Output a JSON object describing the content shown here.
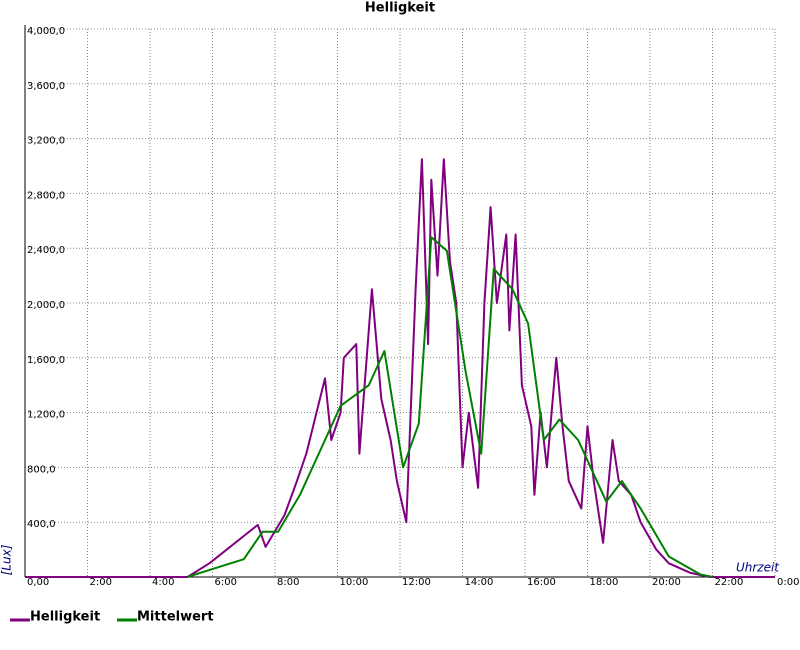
{
  "chart_data": {
    "type": "line",
    "title": "Helligkeit",
    "x_label": "Uhrzeit",
    "y_label": "[Lux]",
    "xlim": [
      0,
      24
    ],
    "ylim": [
      0,
      4000
    ],
    "grid": true,
    "legend": "bottom-left",
    "xticks": [
      {
        "value": 0,
        "label": "0,00"
      },
      {
        "value": 2,
        "label": "2:00"
      },
      {
        "value": 4,
        "label": "4:00"
      },
      {
        "value": 6,
        "label": "6:00"
      },
      {
        "value": 8,
        "label": "8:00"
      },
      {
        "value": 10,
        "label": "10:00"
      },
      {
        "value": 12,
        "label": "12:00"
      },
      {
        "value": 14,
        "label": "14:00"
      },
      {
        "value": 16,
        "label": "16:00"
      },
      {
        "value": 18,
        "label": "18:00"
      },
      {
        "value": 20,
        "label": "20:00"
      },
      {
        "value": 22,
        "label": "22:00"
      },
      {
        "value": 24,
        "label": "0:00"
      }
    ],
    "yticks": [
      {
        "value": 400,
        "label": "400,0"
      },
      {
        "value": 800,
        "label": "800,0"
      },
      {
        "value": 1200,
        "label": "1,200,0"
      },
      {
        "value": 1600,
        "label": "1,600,0"
      },
      {
        "value": 2000,
        "label": "2,000,0"
      },
      {
        "value": 2400,
        "label": "2,400,0"
      },
      {
        "value": 2800,
        "label": "2,800,0"
      },
      {
        "value": 3200,
        "label": "3,200,0"
      },
      {
        "value": 3600,
        "label": "3,600,0"
      },
      {
        "value": 4000,
        "label": "4,000,0"
      }
    ],
    "series": [
      {
        "name": "Helligkeit",
        "color": "#800080",
        "x": [
          0,
          5.2,
          5.9,
          7.45,
          7.7,
          8.3,
          8.7,
          9.0,
          9.6,
          9.8,
          10.1,
          10.2,
          10.6,
          10.7,
          11.1,
          11.4,
          11.7,
          11.9,
          12.2,
          12.5,
          12.7,
          12.9,
          13.0,
          13.2,
          13.4,
          13.6,
          13.8,
          14.0,
          14.2,
          14.5,
          14.7,
          14.9,
          15.1,
          15.4,
          15.5,
          15.7,
          15.9,
          16.2,
          16.3,
          16.5,
          16.7,
          17.0,
          17.2,
          17.4,
          17.8,
          18.0,
          18.2,
          18.5,
          18.8,
          19.0,
          19.4,
          19.7,
          20.2,
          20.6,
          21.3,
          21.9,
          24
        ],
        "values": [
          0,
          0,
          100,
          380,
          220,
          450,
          700,
          900,
          1450,
          1000,
          1200,
          1600,
          1700,
          900,
          2100,
          1300,
          1000,
          700,
          400,
          2100,
          3050,
          1700,
          2900,
          2200,
          3050,
          2300,
          2000,
          800,
          1200,
          650,
          2000,
          2700,
          2000,
          2500,
          1800,
          2500,
          1400,
          1100,
          600,
          1200,
          800,
          1600,
          1100,
          700,
          500,
          1100,
          700,
          250,
          1000,
          700,
          600,
          400,
          200,
          100,
          30,
          0,
          0
        ]
      },
      {
        "name": "Mittelwert",
        "color": "#008000",
        "x": [
          5.2,
          5.6,
          7.0,
          7.6,
          8.1,
          8.8,
          9.6,
          10.1,
          11.0,
          11.5,
          12.1,
          12.6,
          13.0,
          13.5,
          14.1,
          14.6,
          15.0,
          15.6,
          16.1,
          16.6,
          17.1,
          17.7,
          18.6,
          19.1,
          19.7,
          20.6,
          21.6,
          22.0
        ],
        "values": [
          0,
          30,
          130,
          330,
          330,
          600,
          1000,
          1250,
          1400,
          1650,
          800,
          1120,
          2480,
          2380,
          1500,
          900,
          2250,
          2100,
          1850,
          1000,
          1150,
          1000,
          550,
          700,
          500,
          150,
          20,
          0
        ]
      }
    ]
  }
}
